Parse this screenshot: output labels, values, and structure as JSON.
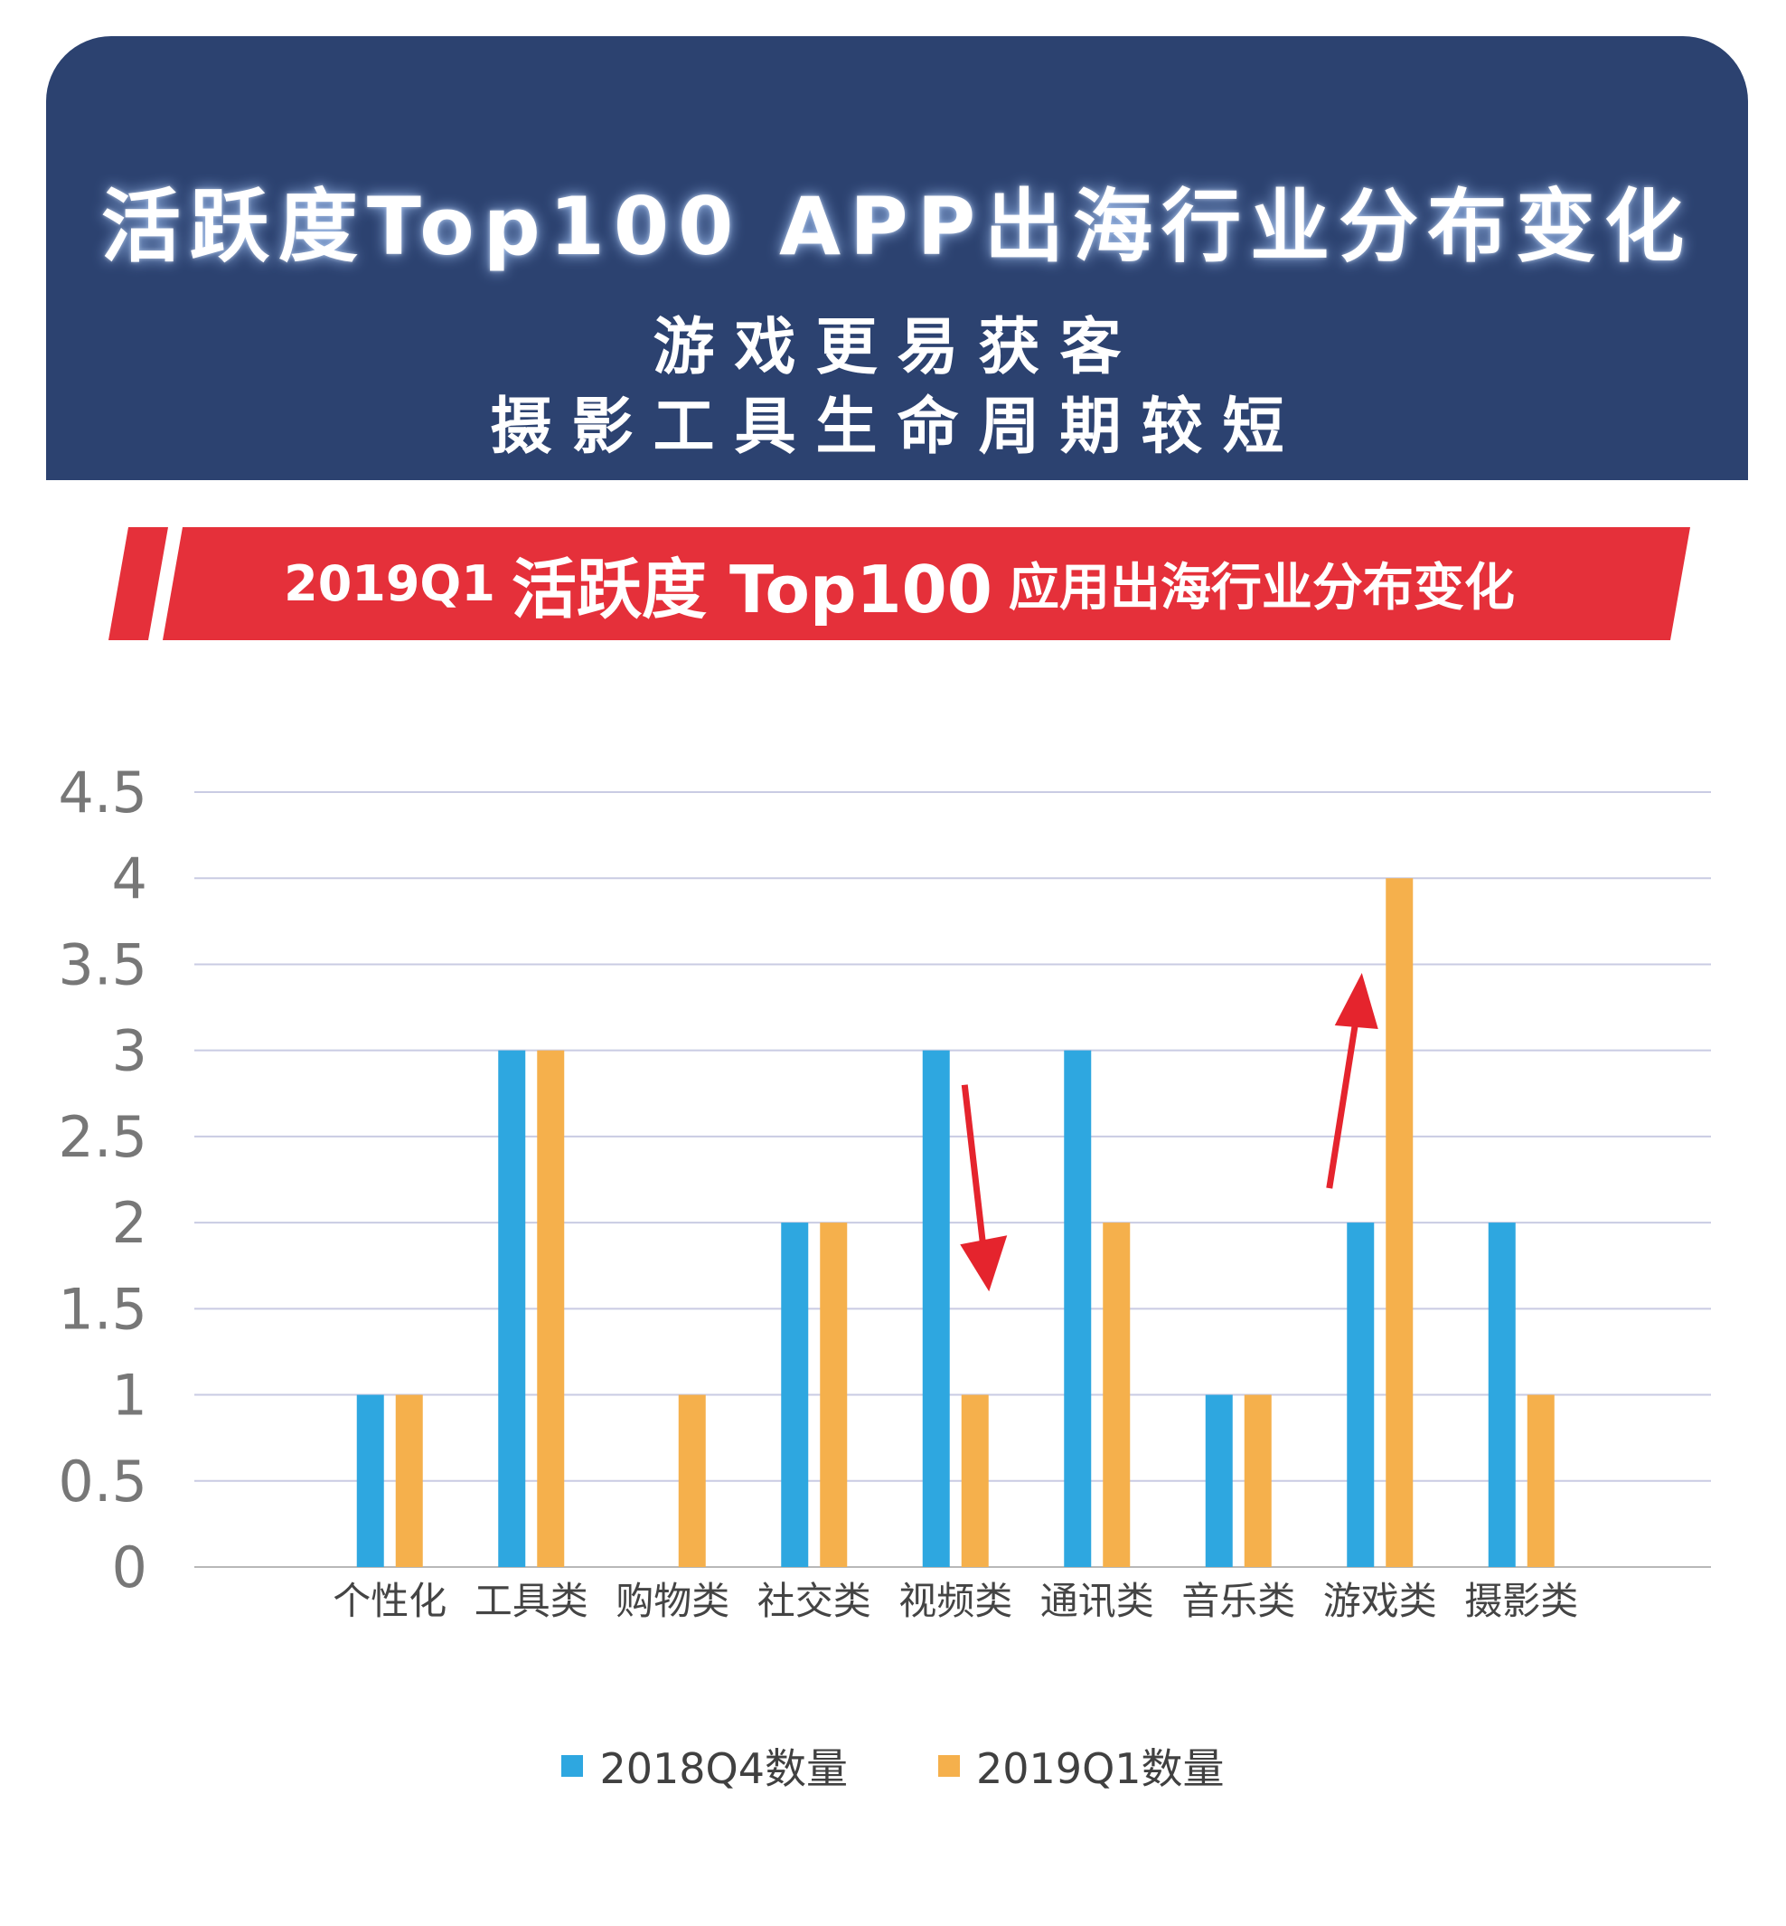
{
  "header": {
    "title": "活跃度Top100 APP出海行业分布变化",
    "subtitle_line1": "游戏更易获客",
    "subtitle_line2": "摄影工具生命周期较短"
  },
  "banner": {
    "part1": "2019Q1",
    "part2": "活跃度 Top100",
    "part3": "应用出海行业分布变化",
    "color": "#e5303a"
  },
  "chart_data": {
    "type": "bar",
    "categories": [
      "个性化",
      "工具类",
      "购物类",
      "社交类",
      "视频类",
      "通讯类",
      "音乐类",
      "游戏类",
      "摄影类"
    ],
    "series": [
      {
        "name": "2018Q4数量",
        "color": "#2ea7e0",
        "values": [
          1,
          3,
          0,
          2,
          3,
          3,
          1,
          2,
          2
        ]
      },
      {
        "name": "2019Q1数量",
        "color": "#f5b04c",
        "values": [
          1,
          3,
          1,
          2,
          1,
          2,
          1,
          4,
          1
        ]
      }
    ],
    "y_ticks": [
      "0",
      "0.5",
      "1",
      "1.5",
      "2",
      "2.5",
      "3",
      "3.5",
      "4",
      "4.5"
    ],
    "ylim": [
      0,
      4.5
    ],
    "grid": true,
    "legend_position": "bottom",
    "annotations": [
      {
        "type": "arrow-down",
        "category": "视频类",
        "color": "#e5242d"
      },
      {
        "type": "arrow-up",
        "category": "游戏类",
        "color": "#e5242d"
      }
    ]
  }
}
